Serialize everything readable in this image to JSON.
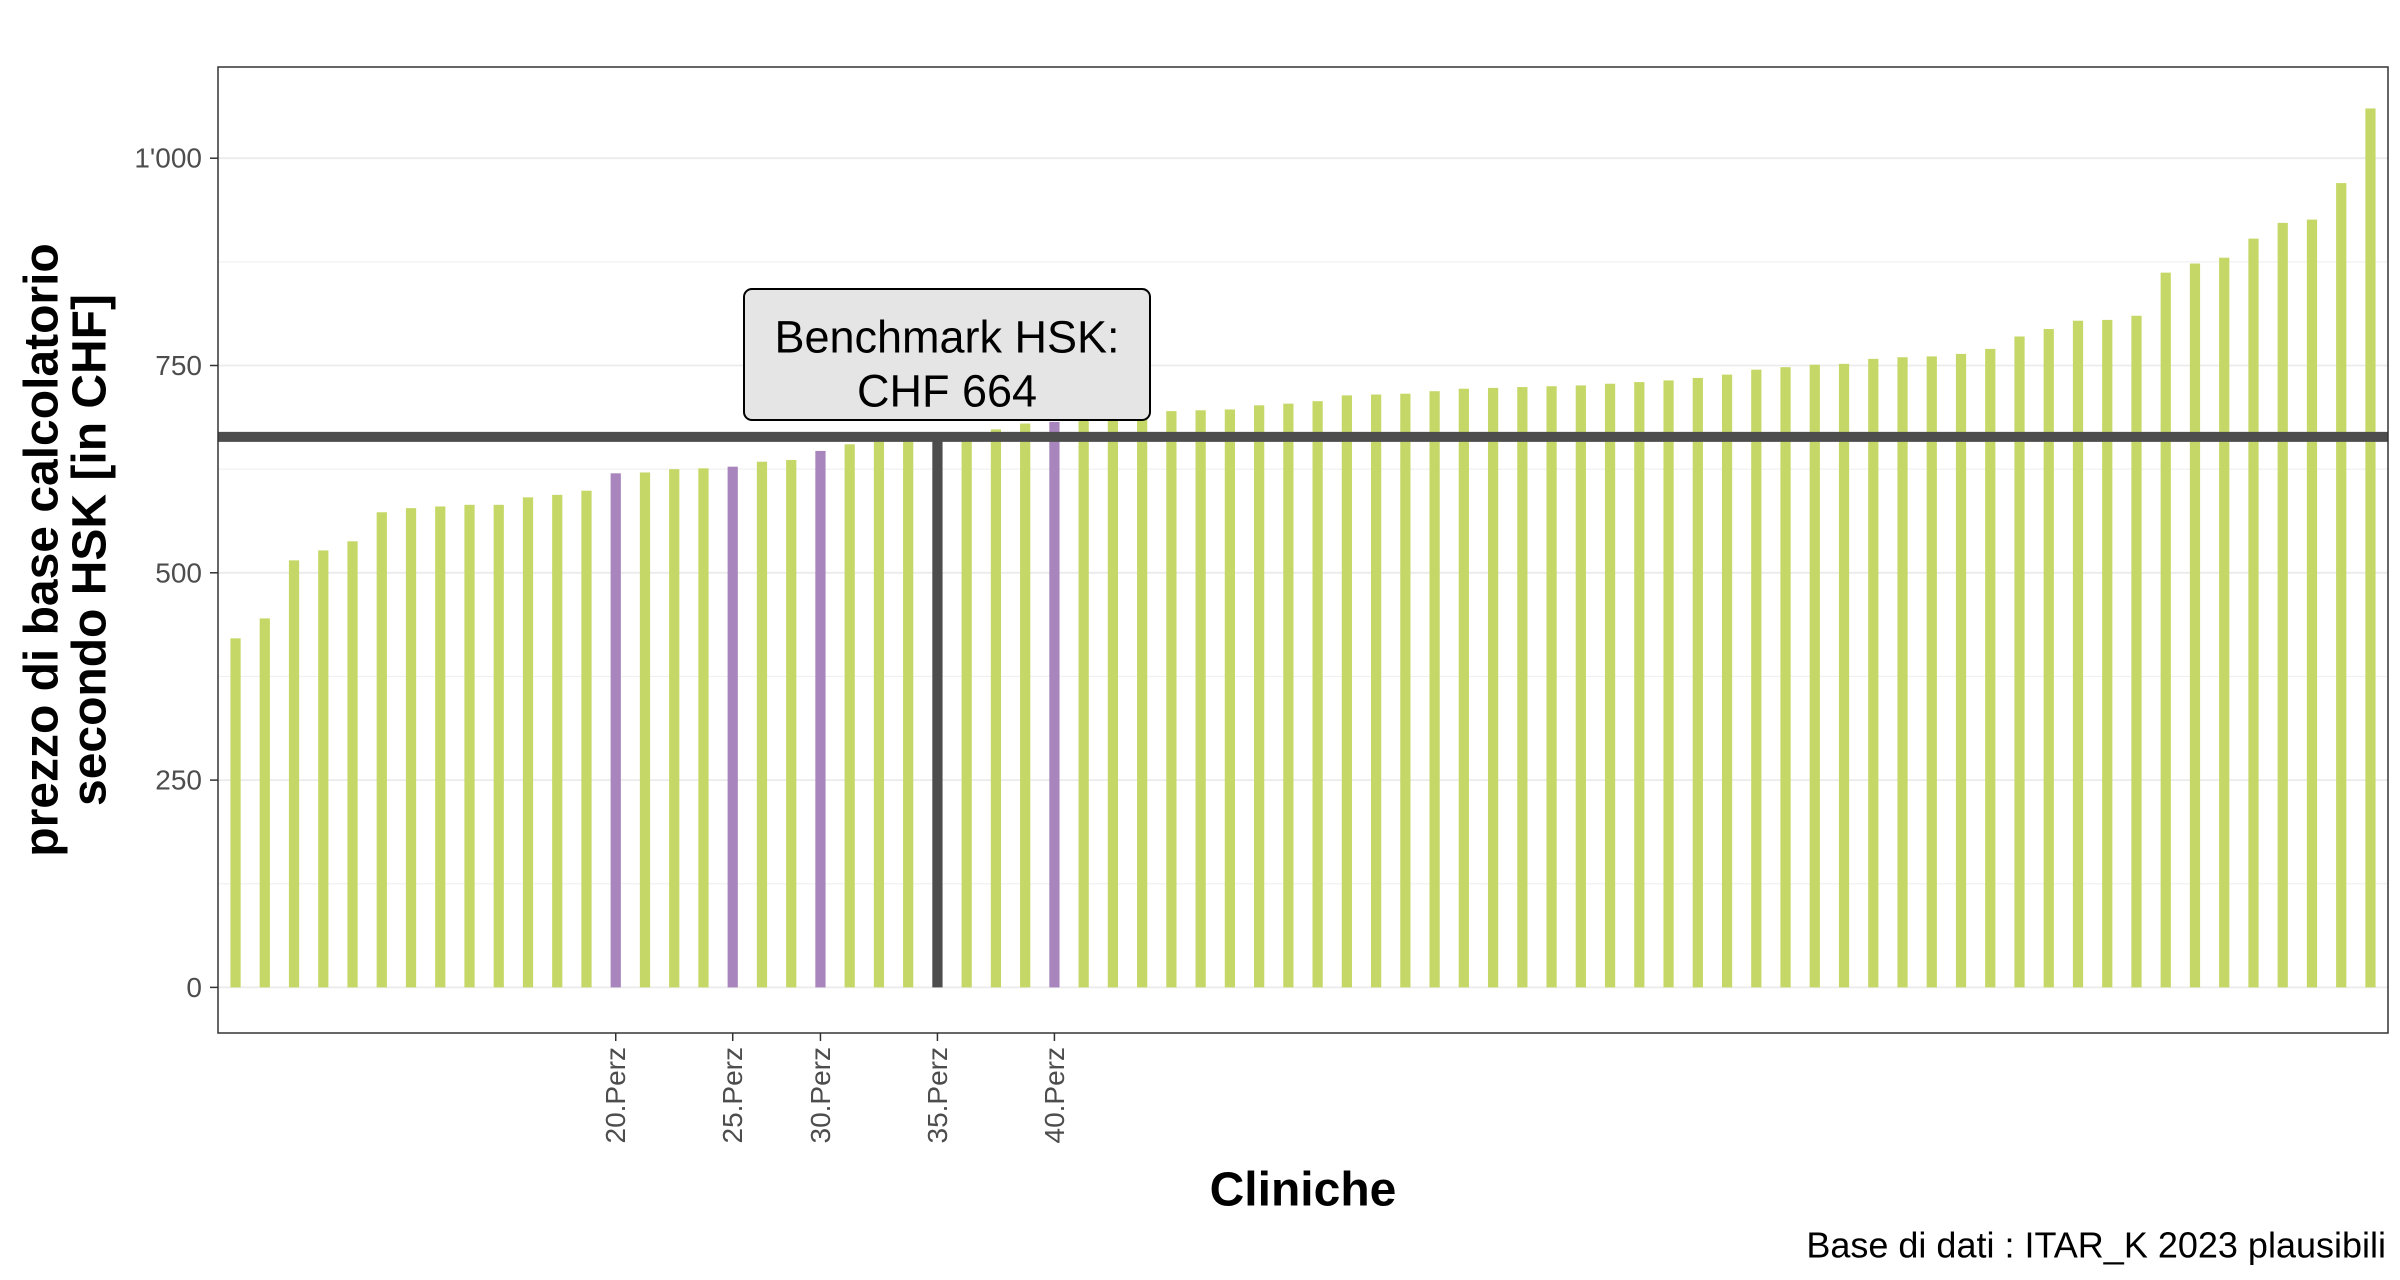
{
  "chart_data": {
    "type": "bar",
    "xlabel": "Cliniche",
    "ylabel_lines": [
      "prezzo di base calcolatorio",
      "secondo HSK [in CHF]"
    ],
    "caption": "Base di dati : ITAR_K 2023 plausibili",
    "ylim": [
      -55,
      1110
    ],
    "yticks": [
      0,
      250,
      500,
      750,
      1000
    ],
    "ytick_labels": [
      "0",
      "250",
      "500",
      "750",
      "1'000"
    ],
    "grid": true,
    "benchmark": {
      "value": 664,
      "line1": "Benchmark HSK:",
      "line2": "CHF 664"
    },
    "colors": {
      "default": "#c5d867",
      "highlight": "#a885bc",
      "target": "#4d4d4d",
      "benchmark_line": "#4d4d4d",
      "label_fill": "#e5e5e5"
    },
    "labeled_categories": [
      {
        "index": 13,
        "label": "20.Perz"
      },
      {
        "index": 17,
        "label": "25.Perz"
      },
      {
        "index": 20,
        "label": "30.Perz"
      },
      {
        "index": 24,
        "label": "35.Perz"
      },
      {
        "index": 28,
        "label": "40.Perz"
      }
    ],
    "highlight_indices": [
      13,
      17,
      20,
      28
    ],
    "target_index": 24,
    "values": [
      421,
      445,
      515,
      527,
      538,
      573,
      578,
      580,
      582,
      582,
      591,
      594,
      599,
      620,
      621,
      625,
      626,
      628,
      634,
      636,
      647,
      655,
      659,
      662,
      664,
      665,
      673,
      680,
      682,
      684,
      688,
      690,
      695,
      696,
      697,
      702,
      704,
      707,
      714,
      715,
      716,
      719,
      722,
      723,
      724,
      725,
      726,
      728,
      730,
      732,
      735,
      739,
      745,
      748,
      751,
      752,
      758,
      760,
      761,
      764,
      770,
      785,
      794,
      804,
      805,
      810,
      862,
      873,
      880,
      903,
      922,
      926,
      970,
      1060
    ]
  }
}
